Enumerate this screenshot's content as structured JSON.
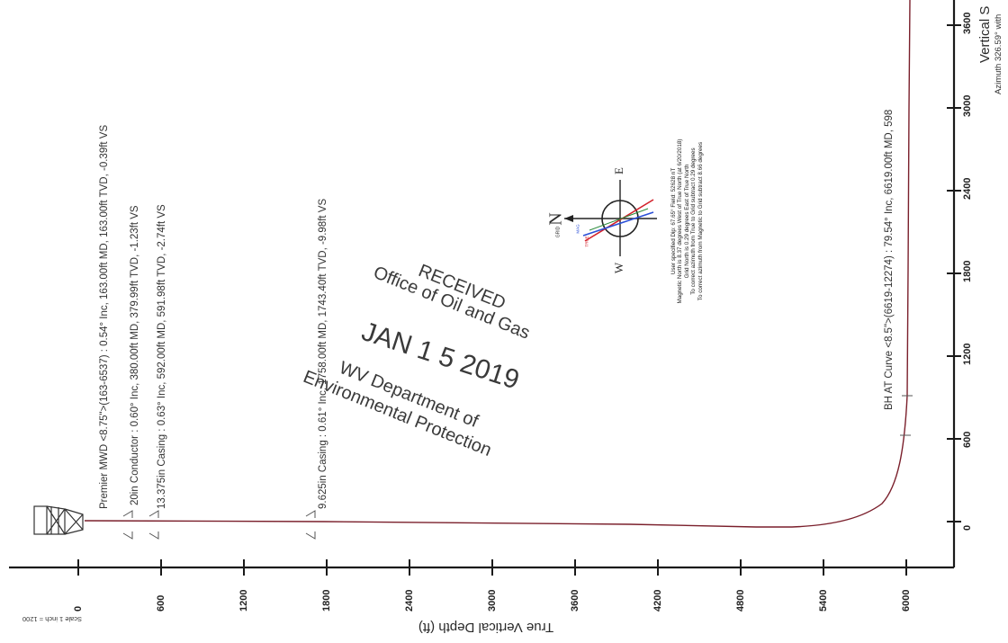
{
  "axis": {
    "depth_label": "True Vertical Depth (ft)",
    "scale_label": "Scale 1 inch = 1200",
    "depth_ticks": [
      "0",
      "600",
      "1200",
      "1800",
      "2400",
      "3000",
      "3600",
      "4200",
      "4800",
      "5400",
      "6000"
    ],
    "vs_ticks": [
      "0",
      "600",
      "1200",
      "1800",
      "2400",
      "3000",
      "3600"
    ],
    "vs_label": "Vertical S",
    "vs_sublabel": "Azimuth 326.59° with"
  },
  "annotations": {
    "premier": "Premier MWD <8.75\">(163-6537) : 0.54° Inc, 163.00ft MD, 163.00ft TVD, -0.39ft VS",
    "conductor": "20in Conductor : 0.60° Inc, 380.00ft MD, 379.99ft TVD, -1.23ft VS",
    "surface_casing": "13.375in Casing : 0.63° Inc, 592.00ft MD, 591.98ft TVD, -2.74ft VS",
    "intermediate_casing": "9.625in Casing : 0.61° Inc, 1758.00ft MD, 1743.40ft TVD, -9.98ft VS",
    "bh_curve": "BH AT Curve <8.5\">(6619-12274) : 79.54° Inc, 6619.00ft MD, 598"
  },
  "stamp": {
    "line1": "RECEIVED",
    "line2": "Office of Oil and Gas",
    "date": "JAN 1 5 2019",
    "line3": "WV Department of",
    "line4": "Environmental Protection"
  },
  "compass": {
    "n": "N",
    "e": "E",
    "w": "W",
    "grid": "GRID",
    "true_label": "TRUE",
    "mag_label": "MAG"
  },
  "magnetic_notes": [
    "User specified Dip: 67.65°  Field: 52628 nT",
    "Magnetic North is 8.37 degrees West of True North (at 6/20/2018)",
    "Grid North is 0.29 degrees East of True North",
    "To correct azimuth from True to Grid subtract 0.29 degrees",
    "To correct azimuth from Magnetic to Grid subtract 8.66 degrees"
  ],
  "colors": {
    "well_path": "#7a1f2b",
    "axis": "#1a1a1a",
    "true_north": "#d3202a",
    "mag_north": "#2a4fd6"
  }
}
